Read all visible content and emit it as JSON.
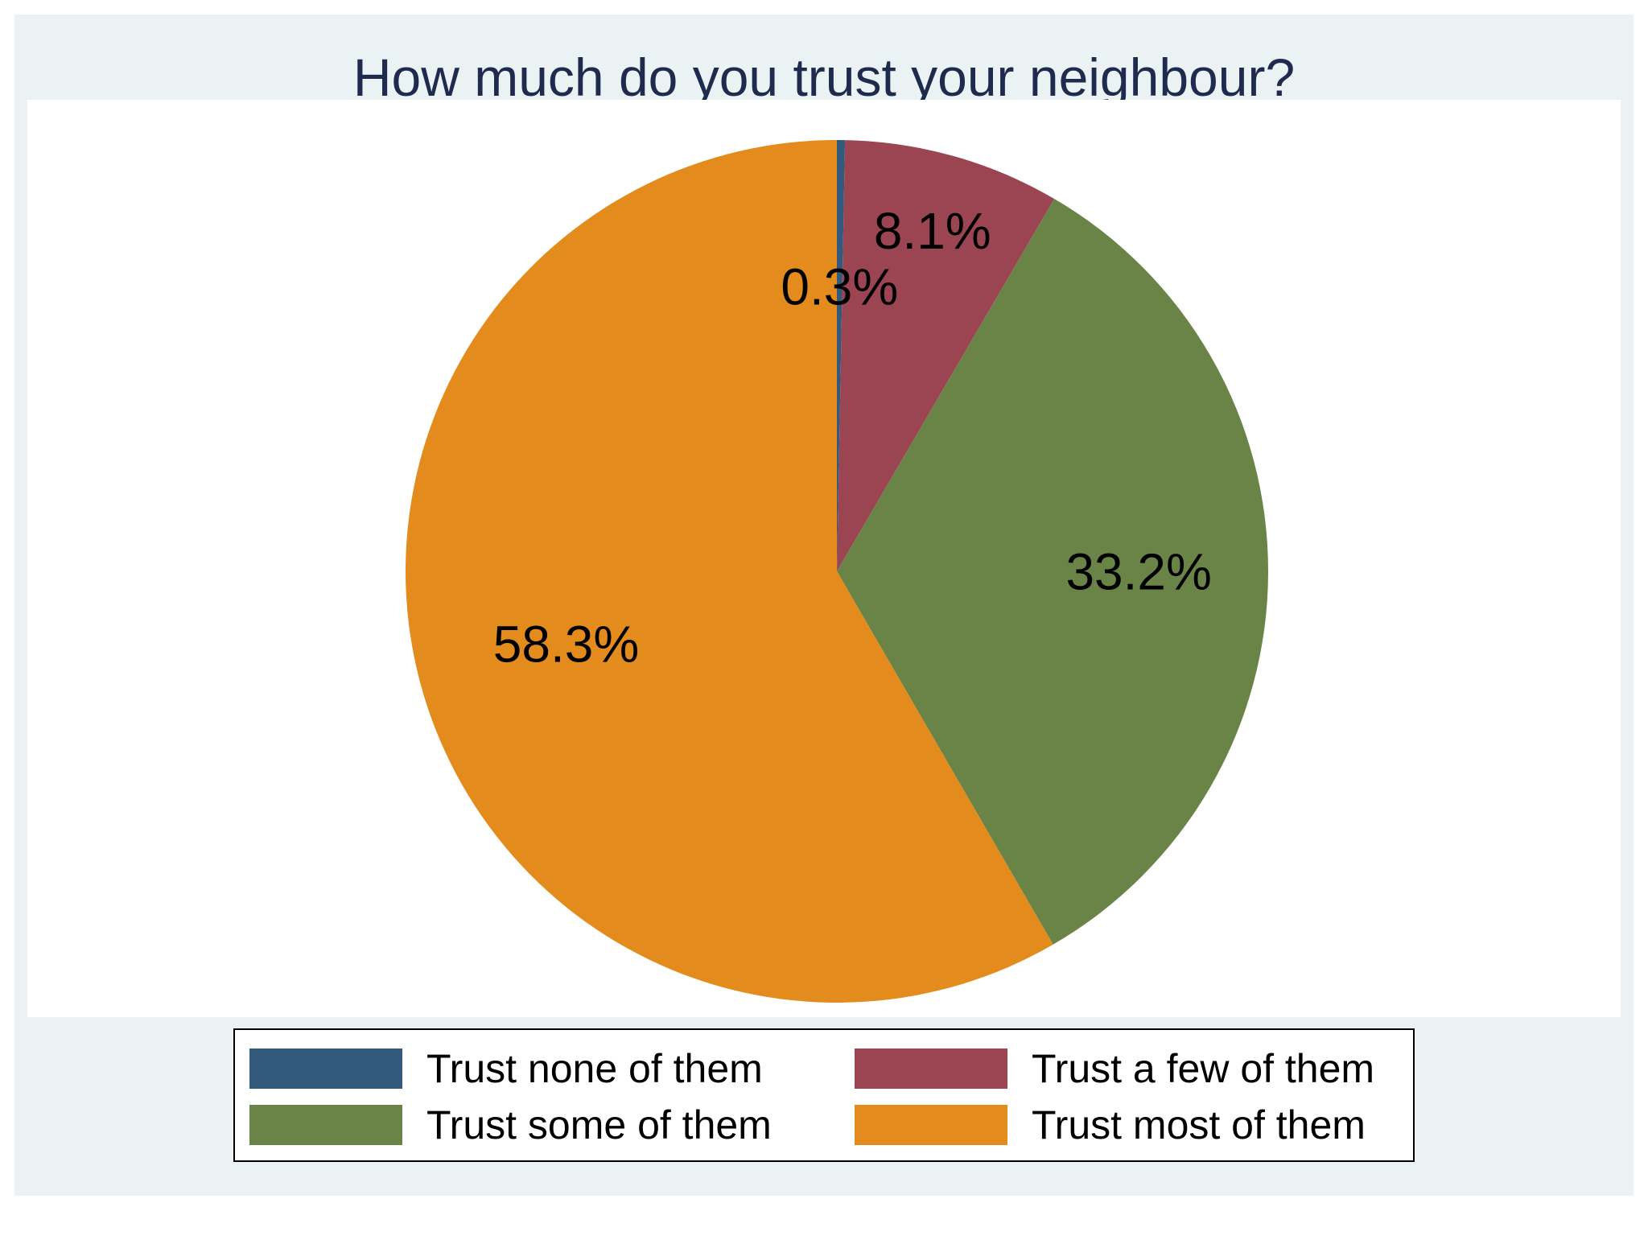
{
  "chart_data": {
    "type": "pie",
    "title": "How much do you trust your neighbour?",
    "legend_position": "bottom",
    "slices": [
      {
        "label": "Trust none of them",
        "value": 0.3,
        "display": "0.3%",
        "color": "#33597d"
      },
      {
        "label": "Trust a few of them",
        "value": 8.1,
        "display": "8.1%",
        "color": "#9b4552"
      },
      {
        "label": "Trust some of them",
        "value": 33.2,
        "display": "33.2%",
        "color": "#6a8447"
      },
      {
        "label": "Trust most of them",
        "value": 58.3,
        "display": "58.3%",
        "color": "#e48b1d"
      }
    ]
  },
  "colors": {
    "frame_background": "#eaf2f3",
    "plot_background": "#ffffff",
    "title_color": "#1e2a4e"
  }
}
